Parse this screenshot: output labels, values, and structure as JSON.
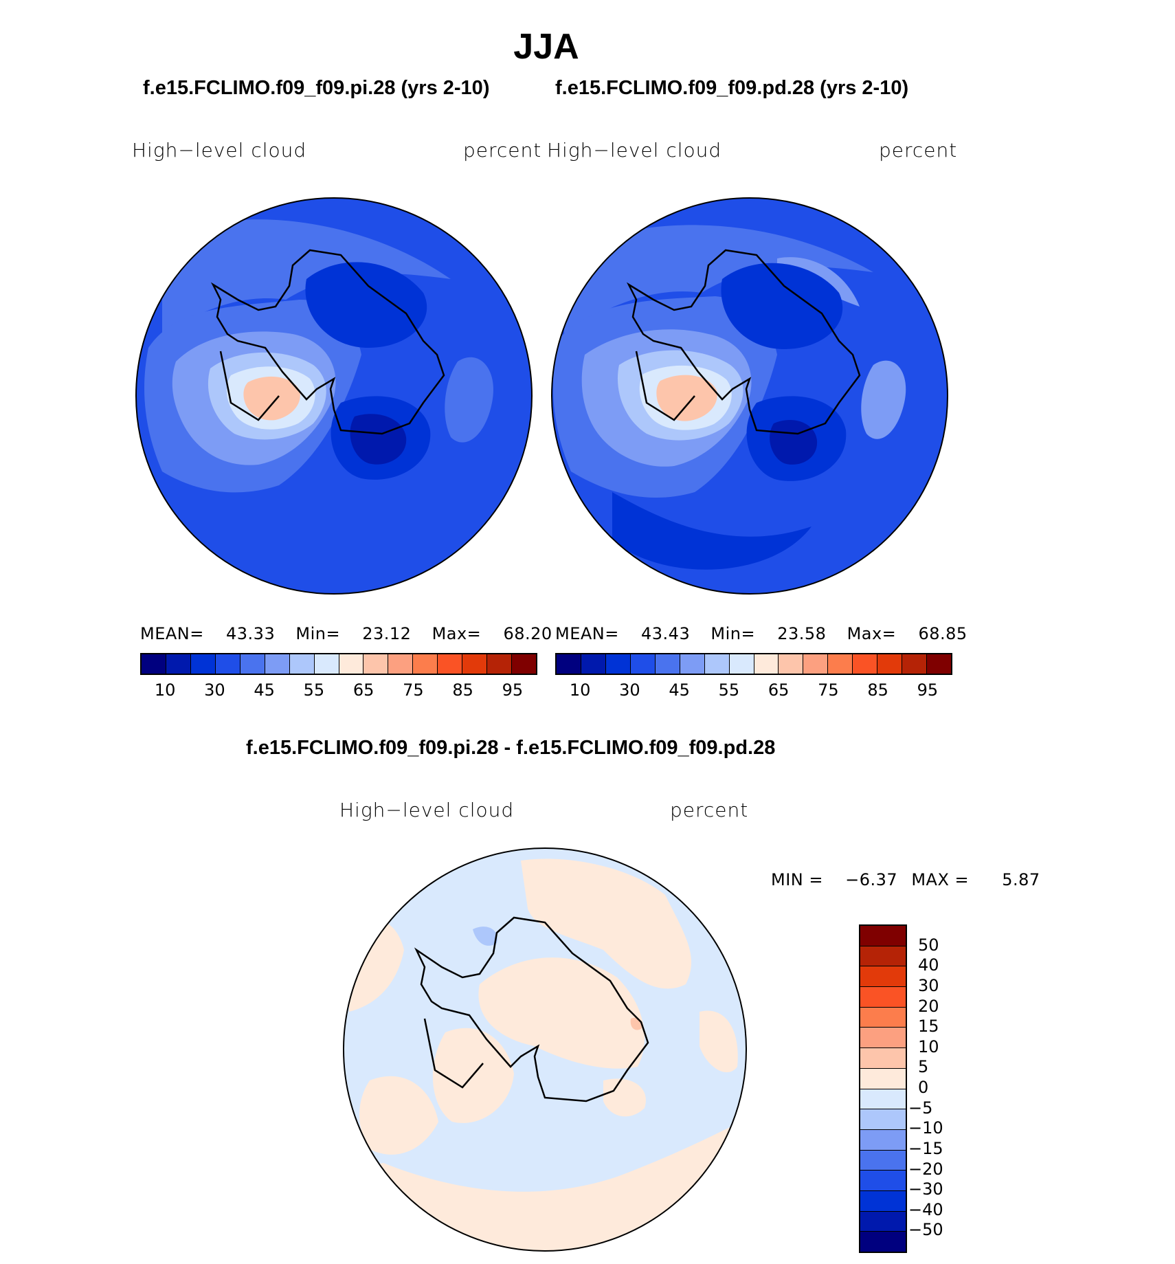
{
  "season": "JJA",
  "panels": [
    {
      "case": "f.e15.FCLIMO.f09_f09.pi.28 (yrs 2-10)",
      "variable": "High−level  cloud",
      "units": "percent",
      "stats": {
        "mean_label": "MEAN=",
        "mean": "43.33",
        "min_label": "Min=",
        "min": "23.12",
        "max_label": "Max=",
        "max": "68.20"
      }
    },
    {
      "case": "f.e15.FCLIMO.f09_f09.pd.28 (yrs 2-10)",
      "variable": "High−level  cloud",
      "units": "percent",
      "stats": {
        "mean_label": "MEAN=",
        "mean": "43.43",
        "min_label": "Min=",
        "min": "23.58",
        "max_label": "Max=",
        "max": "68.85"
      }
    }
  ],
  "colorbar": {
    "colors": [
      "#00007f",
      "#0019ad",
      "#0033d6",
      "#1f4ee8",
      "#4a73ee",
      "#7d9cf5",
      "#adc7fb",
      "#d9e9fd",
      "#feeadb",
      "#fdc5ab",
      "#fca080",
      "#fc7d4c",
      "#fa5325",
      "#e23a0a",
      "#b52306",
      "#7f0000"
    ],
    "labels": [
      "10",
      "30",
      "45",
      "55",
      "65",
      "75",
      "85",
      "95"
    ]
  },
  "diff": {
    "title": "f.e15.FCLIMO.f09_f09.pi.28 - f.e15.FCLIMO.f09_f09.pd.28",
    "variable": "High−level  cloud",
    "units": "percent",
    "min_label": "MIN =",
    "min": "−6.37",
    "max_label": "MAX =",
    "max": "5.87",
    "colorbar_colors": [
      "#7f0000",
      "#b52306",
      "#e23a0a",
      "#fa5325",
      "#fc7d4c",
      "#fca080",
      "#fdc5ab",
      "#feeadb",
      "#d9e9fd",
      "#adc7fb",
      "#7d9cf5",
      "#4a73ee",
      "#1f4ee8",
      "#0033d6",
      "#0019ad",
      "#00007f"
    ],
    "colorbar_labels": [
      "50",
      "40",
      "30",
      "20",
      "15",
      "10",
      "5",
      "0",
      "−5",
      "−10",
      "−15",
      "−20",
      "−30",
      "−40",
      "−50"
    ]
  },
  "legend_palette": {
    "ocean_base": "#1f4ee8",
    "land_line": "#000000"
  }
}
